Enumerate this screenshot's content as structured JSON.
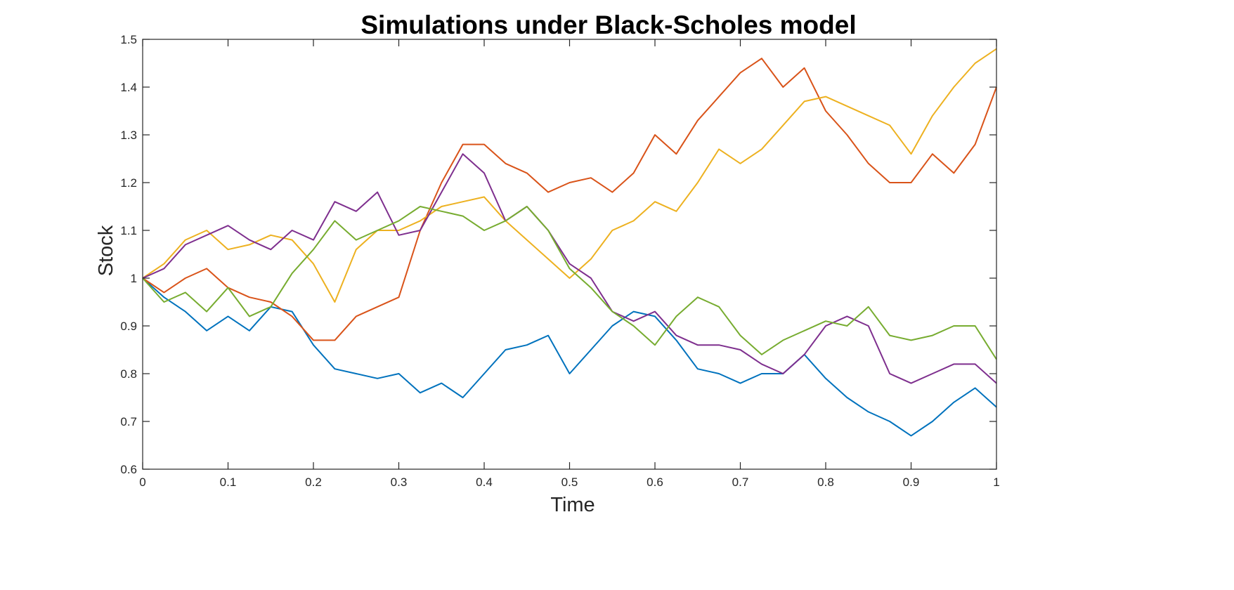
{
  "chart_data": {
    "type": "line",
    "title": "Simulations under Black-Scholes model",
    "xlabel": "Time",
    "ylabel": "Stock",
    "xlim": [
      0,
      1
    ],
    "ylim": [
      0.6,
      1.5
    ],
    "xticks": [
      "0",
      "0.1",
      "0.2",
      "0.3",
      "0.4",
      "0.5",
      "0.6",
      "0.7",
      "0.8",
      "0.9",
      "1"
    ],
    "yticks": [
      "0.6",
      "0.7",
      "0.8",
      "0.9",
      "1",
      "1.1",
      "1.2",
      "1.3",
      "1.4",
      "1.5"
    ],
    "grid": false,
    "x": [
      0,
      0.025,
      0.05,
      0.075,
      0.1,
      0.125,
      0.15,
      0.175,
      0.2,
      0.225,
      0.25,
      0.275,
      0.3,
      0.325,
      0.35,
      0.375,
      0.4,
      0.425,
      0.45,
      0.475,
      0.5,
      0.525,
      0.55,
      0.575,
      0.6,
      0.625,
      0.65,
      0.675,
      0.7,
      0.725,
      0.75,
      0.775,
      0.8,
      0.825,
      0.85,
      0.875,
      0.9,
      0.925,
      0.95,
      0.975,
      1
    ],
    "series": [
      {
        "color": "#0072BD",
        "values": [
          1.0,
          0.96,
          0.93,
          0.89,
          0.92,
          0.89,
          0.94,
          0.93,
          0.86,
          0.81,
          0.8,
          0.79,
          0.8,
          0.76,
          0.78,
          0.75,
          0.8,
          0.85,
          0.86,
          0.88,
          0.8,
          0.85,
          0.9,
          0.93,
          0.92,
          0.87,
          0.81,
          0.8,
          0.78,
          0.8,
          0.8,
          0.84,
          0.79,
          0.75,
          0.72,
          0.7,
          0.67,
          0.7,
          0.74,
          0.77,
          0.73
        ]
      },
      {
        "color": "#D95319",
        "values": [
          1.0,
          0.97,
          1.0,
          1.02,
          0.98,
          0.96,
          0.95,
          0.92,
          0.87,
          0.87,
          0.92,
          0.94,
          0.96,
          1.1,
          1.2,
          1.28,
          1.28,
          1.24,
          1.22,
          1.18,
          1.2,
          1.21,
          1.18,
          1.22,
          1.3,
          1.26,
          1.33,
          1.38,
          1.43,
          1.46,
          1.4,
          1.44,
          1.35,
          1.3,
          1.24,
          1.2,
          1.2,
          1.26,
          1.22,
          1.28,
          1.4
        ]
      },
      {
        "color": "#EDB120",
        "values": [
          1.0,
          1.03,
          1.08,
          1.1,
          1.06,
          1.07,
          1.09,
          1.08,
          1.03,
          0.95,
          1.06,
          1.1,
          1.1,
          1.12,
          1.15,
          1.16,
          1.17,
          1.12,
          1.08,
          1.04,
          1.0,
          1.04,
          1.1,
          1.12,
          1.16,
          1.14,
          1.2,
          1.27,
          1.24,
          1.27,
          1.32,
          1.37,
          1.38,
          1.36,
          1.34,
          1.32,
          1.26,
          1.34,
          1.4,
          1.45,
          1.48
        ]
      },
      {
        "color": "#7E2F8E",
        "values": [
          1.0,
          1.02,
          1.07,
          1.09,
          1.11,
          1.08,
          1.06,
          1.1,
          1.08,
          1.16,
          1.14,
          1.18,
          1.09,
          1.1,
          1.18,
          1.26,
          1.22,
          1.12,
          1.15,
          1.1,
          1.03,
          1.0,
          0.93,
          0.91,
          0.93,
          0.88,
          0.86,
          0.86,
          0.85,
          0.82,
          0.8,
          0.84,
          0.9,
          0.92,
          0.9,
          0.8,
          0.78,
          0.8,
          0.82,
          0.82,
          0.78
        ]
      },
      {
        "color": "#77AC30",
        "values": [
          1.0,
          0.95,
          0.97,
          0.93,
          0.98,
          0.92,
          0.94,
          1.01,
          1.06,
          1.12,
          1.08,
          1.1,
          1.12,
          1.15,
          1.14,
          1.13,
          1.1,
          1.12,
          1.15,
          1.1,
          1.02,
          0.98,
          0.93,
          0.9,
          0.86,
          0.92,
          0.96,
          0.94,
          0.88,
          0.84,
          0.87,
          0.89,
          0.91,
          0.9,
          0.94,
          0.88,
          0.87,
          0.88,
          0.9,
          0.9,
          0.83
        ]
      }
    ]
  }
}
